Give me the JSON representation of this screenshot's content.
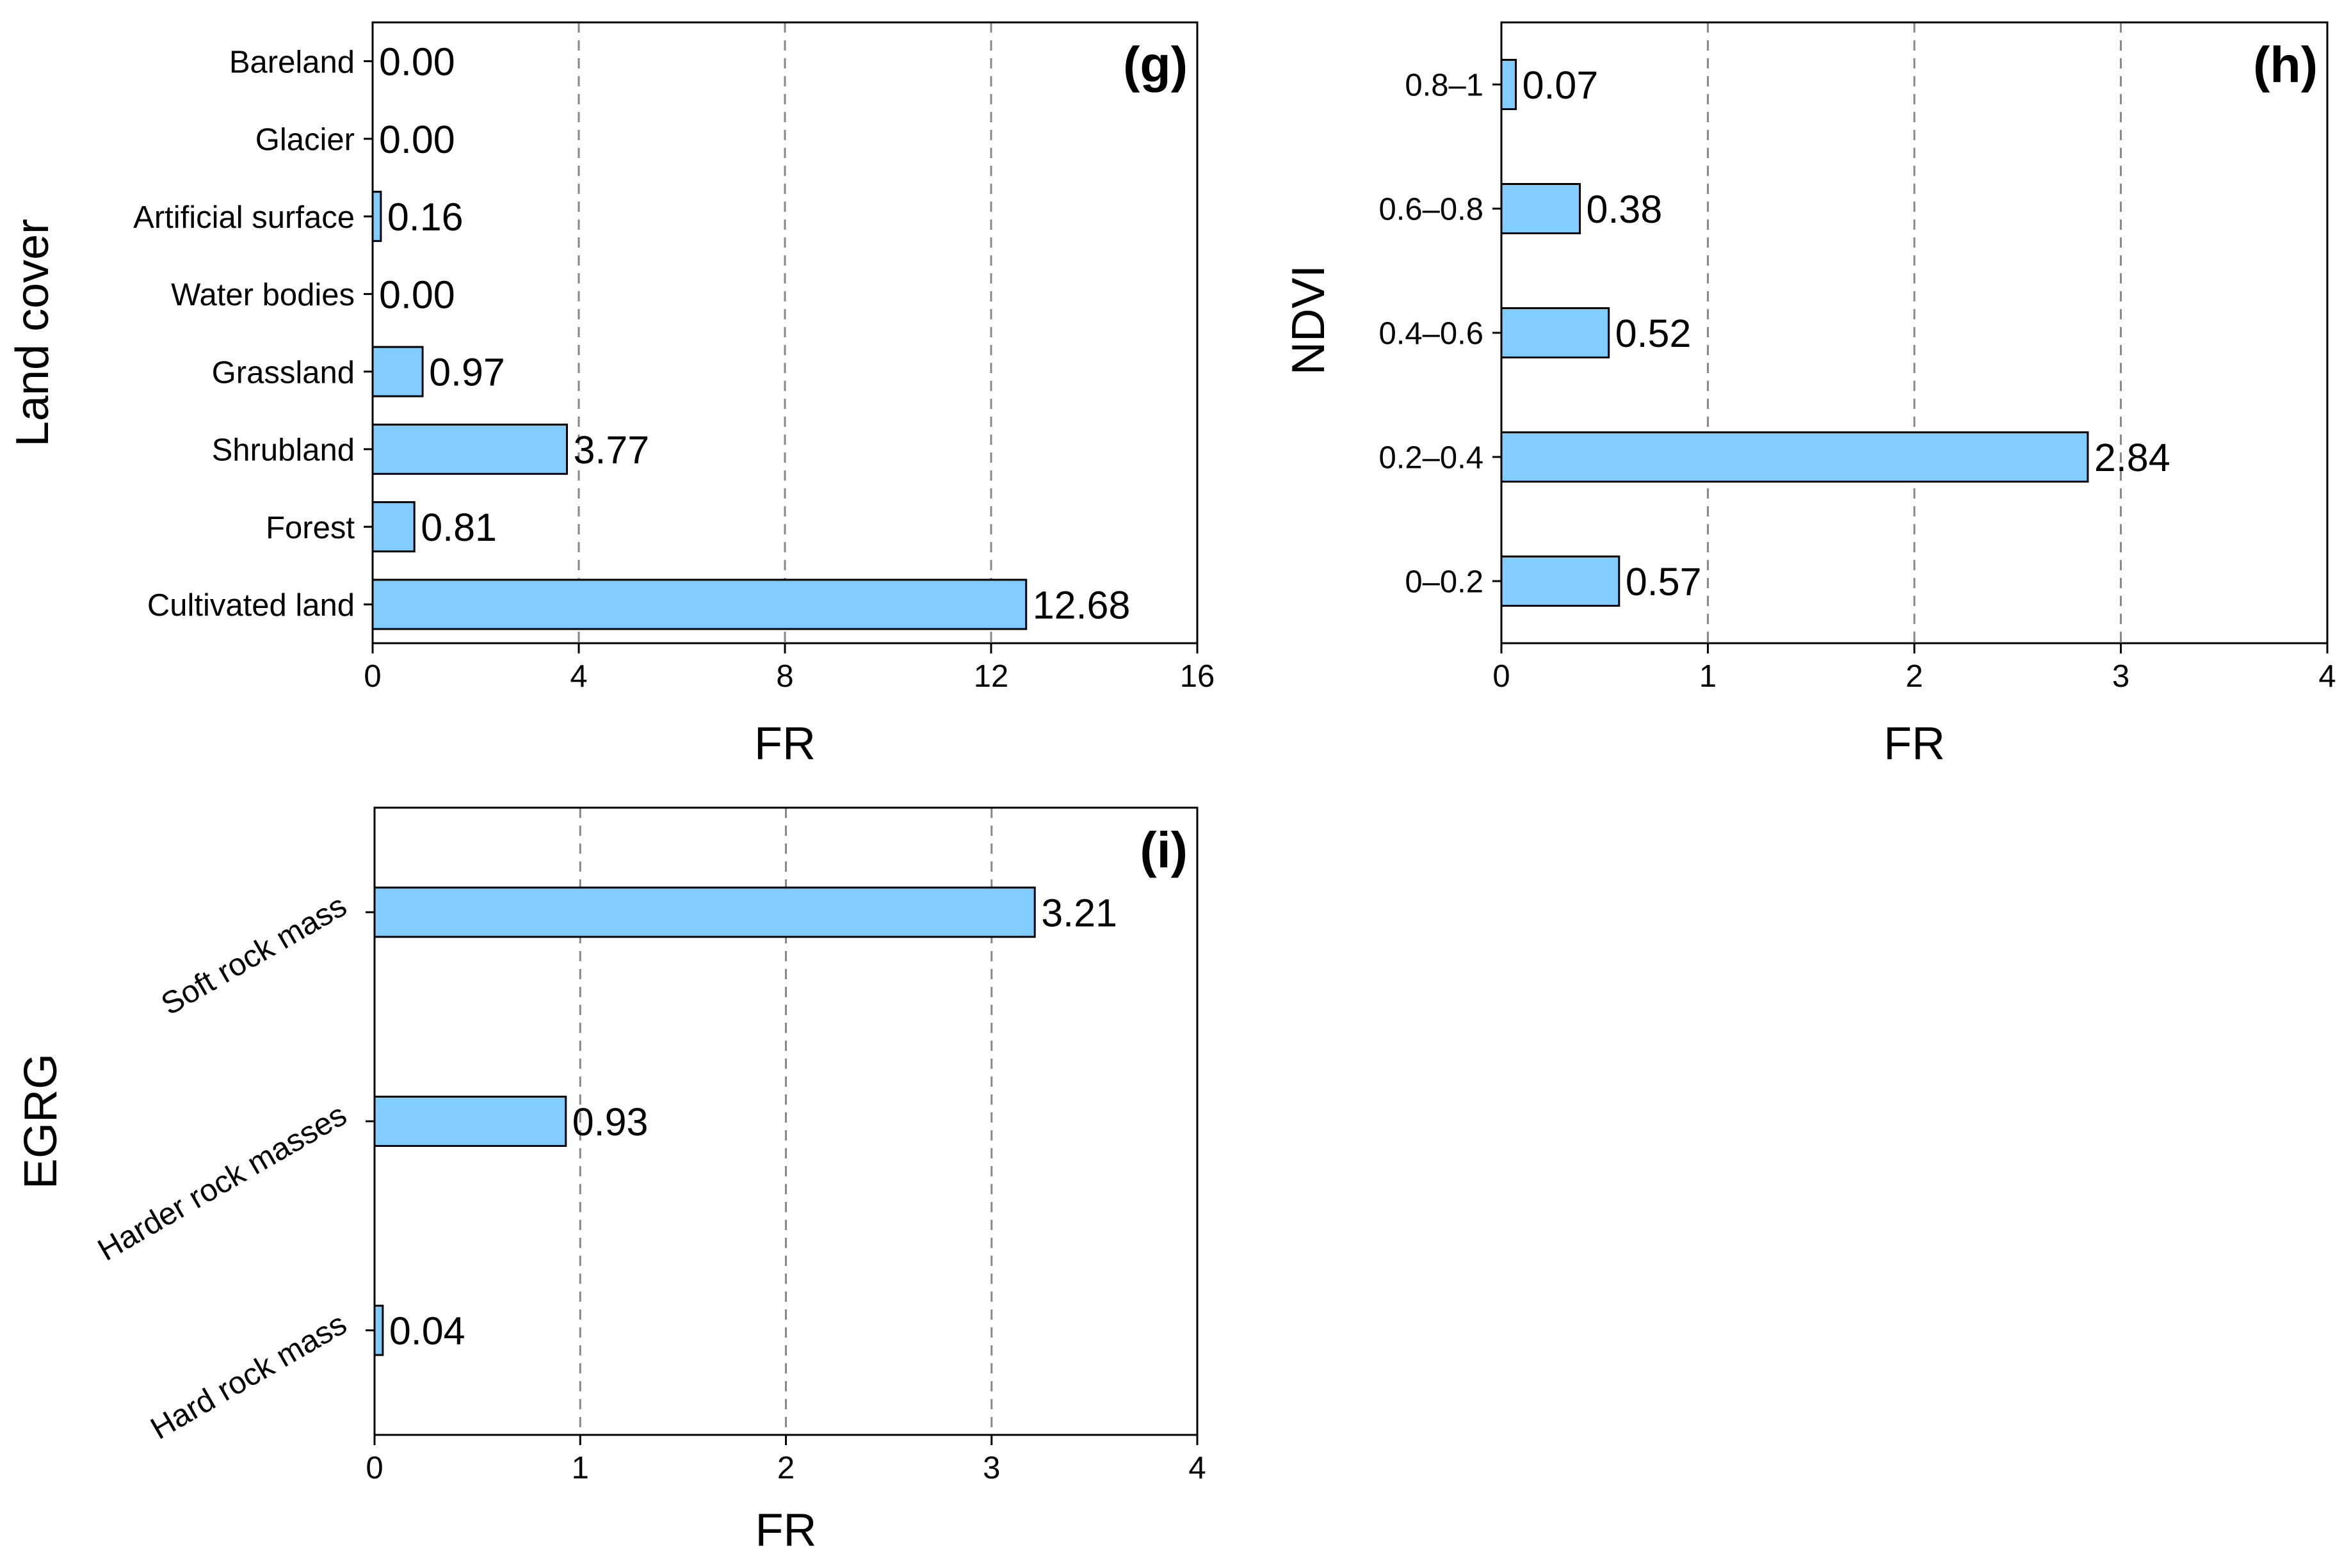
{
  "chart_data": [
    {
      "id": "g",
      "type": "bar",
      "orientation": "horizontal",
      "panel_label": "(g)",
      "ylabel": "Land cover",
      "xlabel": "FR",
      "xlim": [
        0,
        16
      ],
      "xticks": [
        0,
        4,
        8,
        12,
        16
      ],
      "xtick_labels": [
        "0",
        "4",
        "8",
        "12",
        "16"
      ],
      "gridlines_at": [
        4,
        8,
        12
      ],
      "categories": [
        "Bareland",
        "Glacier",
        "Artificial surface",
        "Water bodies",
        "Grassland",
        "Shrubland",
        "Forest",
        "Cultivated land"
      ],
      "values": [
        0.0,
        0.0,
        0.16,
        0.0,
        0.97,
        3.77,
        0.81,
        12.68
      ],
      "value_labels": [
        "0.00",
        "0.00",
        "0.16",
        "0.00",
        "0.97",
        "3.77",
        "0.81",
        "12.68"
      ],
      "bar_color": "#80CCFF",
      "rotated_categories": false
    },
    {
      "id": "h",
      "type": "bar",
      "orientation": "horizontal",
      "panel_label": "(h)",
      "ylabel": "NDVI",
      "xlabel": "FR",
      "xlim": [
        0,
        4
      ],
      "xticks": [
        0,
        1,
        2,
        3,
        4
      ],
      "xtick_labels": [
        "0",
        "1",
        "2",
        "3",
        "4"
      ],
      "gridlines_at": [
        1,
        2,
        3
      ],
      "categories": [
        "0.8–1",
        "0.6–0.8",
        "0.4–0.6",
        "0.2–0.4",
        "0–0.2"
      ],
      "values": [
        0.07,
        0.38,
        0.52,
        2.84,
        0.57
      ],
      "value_labels": [
        "0.07",
        "0.38",
        "0.52",
        "2.84",
        "0.57"
      ],
      "bar_color": "#80CCFF",
      "rotated_categories": false
    },
    {
      "id": "i",
      "type": "bar",
      "orientation": "horizontal",
      "panel_label": "(i)",
      "ylabel": "EGRG",
      "xlabel": "FR",
      "xlim": [
        0,
        4
      ],
      "xticks": [
        0,
        1,
        2,
        3,
        4
      ],
      "xtick_labels": [
        "0",
        "1",
        "2",
        "3",
        "4"
      ],
      "gridlines_at": [
        1,
        2,
        3
      ],
      "categories": [
        "Soft rock mass",
        "Harder rock masses",
        "Hard rock mass"
      ],
      "values": [
        3.21,
        0.93,
        0.04
      ],
      "value_labels": [
        "3.21",
        "0.93",
        "0.04"
      ],
      "bar_color": "#80CCFF",
      "rotated_categories": true
    }
  ]
}
